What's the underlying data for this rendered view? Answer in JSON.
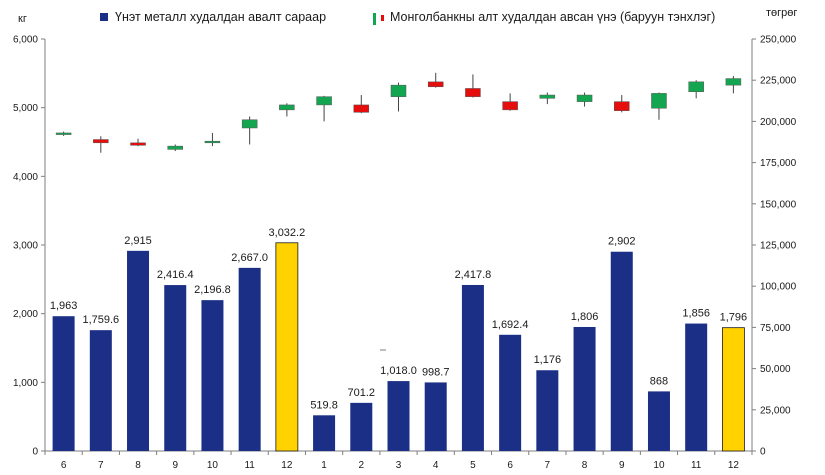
{
  "chart_data": {
    "type": "bar",
    "left_unit": "кг",
    "right_unit": "төгрөг",
    "legend": {
      "bar_label": "Үнэт металл худалдан авалт сараар",
      "candle_label": "Монголбанкны алт худалдан авсан үнэ (баруун тэнхлэг)"
    },
    "categories": [
      "6",
      "7",
      "8",
      "9",
      "10",
      "11",
      "12",
      "1",
      "2",
      "3",
      "4",
      "5",
      "6",
      "7",
      "8",
      "9",
      "10",
      "11",
      "12"
    ],
    "y_left": {
      "min": 0,
      "max": 6000,
      "ticks": [
        "0",
        "1,000",
        "2,000",
        "3,000",
        "4,000",
        "5,000",
        "6,000"
      ]
    },
    "y_right": {
      "min": 0,
      "max": 250000,
      "ticks": [
        "0",
        "25,000",
        "50,000",
        "75,000",
        "100,000",
        "125,000",
        "150,000",
        "175,000",
        "200,000",
        "225,000",
        "250,000"
      ]
    },
    "bars": {
      "values": [
        1963,
        1759.6,
        2915,
        2416.4,
        2196.8,
        2667.0,
        3032.2,
        519.8,
        701.2,
        1018.0,
        998.7,
        2417.8,
        1692.4,
        1176,
        1806,
        2902,
        868,
        1856,
        1796
      ],
      "labels": [
        "1,963",
        "1,759.6",
        "2,915",
        "2,416.4",
        "2,196.8",
        "2,667.0",
        "3,032.2",
        "519.8",
        "701.2",
        "1,018.0",
        "998.7",
        "2,417.8",
        "1,692.4",
        "1,176",
        "1,806",
        "2,902",
        "868",
        "1,856",
        "1,796"
      ],
      "highlight_indices": [
        6,
        18
      ]
    },
    "candles": [
      {
        "open": 192000,
        "close": 193000,
        "high": 193800,
        "low": 191200
      },
      {
        "open": 189000,
        "close": 187000,
        "high": 191000,
        "low": 181000
      },
      {
        "open": 187000,
        "close": 185500,
        "high": 189500,
        "low": 185000
      },
      {
        "open": 183000,
        "close": 185000,
        "high": 186000,
        "low": 182000
      },
      {
        "open": 187000,
        "close": 188000,
        "high": 193000,
        "low": 185000
      },
      {
        "open": 196000,
        "close": 201000,
        "high": 203000,
        "low": 186000
      },
      {
        "open": 207000,
        "close": 210000,
        "high": 211000,
        "low": 203000
      },
      {
        "open": 210000,
        "close": 215000,
        "high": 215500,
        "low": 200000
      },
      {
        "open": 210000,
        "close": 205500,
        "high": 216000,
        "low": 205000
      },
      {
        "open": 215000,
        "close": 222000,
        "high": 223500,
        "low": 206000
      },
      {
        "open": 224000,
        "close": 221000,
        "high": 229500,
        "low": 220500
      },
      {
        "open": 220000,
        "close": 215000,
        "high": 228500,
        "low": 214500
      },
      {
        "open": 212000,
        "close": 207000,
        "high": 217000,
        "low": 206500
      },
      {
        "open": 214000,
        "close": 216000,
        "high": 217500,
        "low": 210500
      },
      {
        "open": 212000,
        "close": 216000,
        "high": 217500,
        "low": 209000
      },
      {
        "open": 212000,
        "close": 206500,
        "high": 216000,
        "low": 205500
      },
      {
        "open": 208000,
        "close": 217000,
        "high": 217500,
        "low": 201000
      },
      {
        "open": 218000,
        "close": 224000,
        "high": 225000,
        "low": 214000
      },
      {
        "open": 222000,
        "close": 226000,
        "high": 227500,
        "low": 217000
      }
    ],
    "colors": {
      "bar": "#1b2f86",
      "bar_highlight": "#ffd200",
      "candle_up": "#14a551",
      "candle_down": "#e60d0d",
      "axis": "#7f7f7f",
      "text": "#1a1a1a"
    },
    "grid": false,
    "legend_position": "top"
  }
}
